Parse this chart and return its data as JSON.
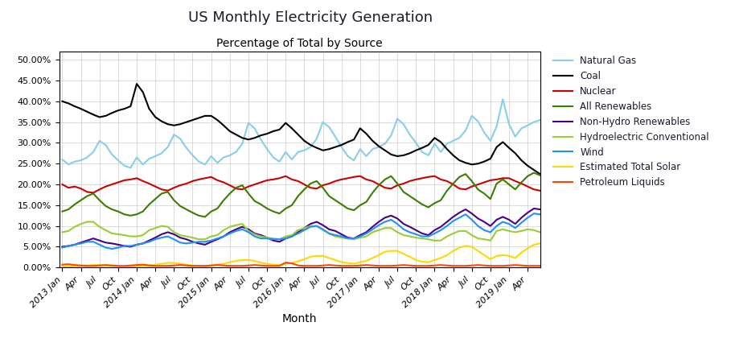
{
  "title": "US Monthly Electricity Generation",
  "subtitle": "Percentage of Total by Source",
  "xlabel": "Month",
  "series": {
    "Natural Gas": {
      "color": "#87CEEB",
      "linewidth": 1.5,
      "values": [
        0.26,
        0.248,
        0.255,
        0.258,
        0.265,
        0.278,
        0.305,
        0.295,
        0.272,
        0.258,
        0.245,
        0.24,
        0.265,
        0.248,
        0.262,
        0.268,
        0.275,
        0.29,
        0.32,
        0.31,
        0.288,
        0.27,
        0.255,
        0.248,
        0.268,
        0.252,
        0.265,
        0.27,
        0.278,
        0.298,
        0.348,
        0.335,
        0.308,
        0.285,
        0.265,
        0.255,
        0.278,
        0.26,
        0.278,
        0.282,
        0.29,
        0.31,
        0.35,
        0.338,
        0.315,
        0.29,
        0.268,
        0.258,
        0.285,
        0.268,
        0.285,
        0.29,
        0.298,
        0.318,
        0.358,
        0.345,
        0.32,
        0.3,
        0.278,
        0.27,
        0.298,
        0.278,
        0.298,
        0.305,
        0.312,
        0.33,
        0.365,
        0.352,
        0.325,
        0.305,
        0.34,
        0.405,
        0.345,
        0.315,
        0.335,
        0.342,
        0.35,
        0.355
      ]
    },
    "Coal": {
      "color": "#000000",
      "linewidth": 1.5,
      "values": [
        0.4,
        0.395,
        0.388,
        0.382,
        0.375,
        0.368,
        0.362,
        0.365,
        0.372,
        0.378,
        0.382,
        0.388,
        0.442,
        0.422,
        0.382,
        0.362,
        0.352,
        0.345,
        0.342,
        0.345,
        0.35,
        0.355,
        0.36,
        0.365,
        0.365,
        0.355,
        0.342,
        0.328,
        0.32,
        0.312,
        0.308,
        0.312,
        0.318,
        0.322,
        0.328,
        0.332,
        0.348,
        0.335,
        0.32,
        0.305,
        0.295,
        0.288,
        0.282,
        0.285,
        0.29,
        0.295,
        0.302,
        0.308,
        0.335,
        0.322,
        0.305,
        0.292,
        0.282,
        0.272,
        0.268,
        0.27,
        0.275,
        0.282,
        0.288,
        0.295,
        0.312,
        0.302,
        0.285,
        0.27,
        0.258,
        0.252,
        0.248,
        0.25,
        0.255,
        0.262,
        0.29,
        0.302,
        0.288,
        0.275,
        0.258,
        0.245,
        0.235,
        0.225
      ]
    },
    "Nuclear": {
      "color": "#CC0000",
      "linewidth": 1.5,
      "values": [
        0.2,
        0.192,
        0.195,
        0.19,
        0.182,
        0.18,
        0.188,
        0.195,
        0.2,
        0.205,
        0.21,
        0.212,
        0.215,
        0.208,
        0.202,
        0.195,
        0.188,
        0.185,
        0.192,
        0.198,
        0.202,
        0.208,
        0.212,
        0.215,
        0.218,
        0.21,
        0.205,
        0.198,
        0.19,
        0.188,
        0.195,
        0.2,
        0.205,
        0.21,
        0.212,
        0.215,
        0.22,
        0.212,
        0.208,
        0.2,
        0.192,
        0.19,
        0.198,
        0.202,
        0.208,
        0.212,
        0.215,
        0.218,
        0.22,
        0.212,
        0.208,
        0.2,
        0.192,
        0.19,
        0.198,
        0.202,
        0.208,
        0.212,
        0.215,
        0.218,
        0.22,
        0.212,
        0.208,
        0.2,
        0.19,
        0.188,
        0.195,
        0.2,
        0.205,
        0.21,
        0.212,
        0.215,
        0.215,
        0.208,
        0.202,
        0.195,
        0.188,
        0.185
      ]
    },
    "All Renewables": {
      "color": "#3A7D00",
      "linewidth": 1.5,
      "values": [
        0.135,
        0.14,
        0.152,
        0.162,
        0.172,
        0.178,
        0.162,
        0.148,
        0.14,
        0.135,
        0.128,
        0.125,
        0.128,
        0.135,
        0.152,
        0.165,
        0.178,
        0.182,
        0.162,
        0.148,
        0.14,
        0.132,
        0.125,
        0.122,
        0.135,
        0.142,
        0.162,
        0.178,
        0.192,
        0.198,
        0.178,
        0.16,
        0.152,
        0.142,
        0.135,
        0.13,
        0.142,
        0.15,
        0.172,
        0.188,
        0.202,
        0.208,
        0.192,
        0.172,
        0.162,
        0.152,
        0.142,
        0.138,
        0.15,
        0.158,
        0.18,
        0.198,
        0.212,
        0.22,
        0.202,
        0.182,
        0.172,
        0.162,
        0.152,
        0.145,
        0.155,
        0.162,
        0.185,
        0.202,
        0.218,
        0.225,
        0.208,
        0.188,
        0.178,
        0.165,
        0.202,
        0.212,
        0.2,
        0.188,
        0.205,
        0.22,
        0.228,
        0.222
      ]
    },
    "Non-Hydro Renewables": {
      "color": "#4B0082",
      "linewidth": 1.5,
      "values": [
        0.05,
        0.052,
        0.055,
        0.06,
        0.065,
        0.07,
        0.065,
        0.06,
        0.058,
        0.055,
        0.052,
        0.05,
        0.055,
        0.058,
        0.065,
        0.072,
        0.08,
        0.085,
        0.08,
        0.072,
        0.068,
        0.062,
        0.058,
        0.055,
        0.062,
        0.068,
        0.075,
        0.085,
        0.092,
        0.098,
        0.092,
        0.082,
        0.078,
        0.072,
        0.065,
        0.062,
        0.07,
        0.075,
        0.085,
        0.095,
        0.105,
        0.11,
        0.102,
        0.092,
        0.088,
        0.08,
        0.072,
        0.07,
        0.078,
        0.085,
        0.098,
        0.11,
        0.12,
        0.125,
        0.118,
        0.105,
        0.098,
        0.09,
        0.082,
        0.078,
        0.09,
        0.098,
        0.11,
        0.122,
        0.132,
        0.14,
        0.13,
        0.118,
        0.11,
        0.1,
        0.115,
        0.122,
        0.115,
        0.105,
        0.12,
        0.132,
        0.142,
        0.14
      ]
    },
    "Hydroelectric Conventional": {
      "color": "#9ACD32",
      "linewidth": 1.5,
      "values": [
        0.085,
        0.088,
        0.098,
        0.105,
        0.11,
        0.11,
        0.098,
        0.09,
        0.082,
        0.08,
        0.078,
        0.075,
        0.075,
        0.078,
        0.09,
        0.095,
        0.1,
        0.098,
        0.085,
        0.078,
        0.075,
        0.072,
        0.068,
        0.068,
        0.075,
        0.078,
        0.09,
        0.098,
        0.102,
        0.105,
        0.088,
        0.08,
        0.075,
        0.072,
        0.07,
        0.068,
        0.075,
        0.078,
        0.09,
        0.095,
        0.1,
        0.1,
        0.09,
        0.082,
        0.075,
        0.072,
        0.07,
        0.068,
        0.072,
        0.075,
        0.085,
        0.09,
        0.095,
        0.095,
        0.085,
        0.078,
        0.075,
        0.072,
        0.07,
        0.068,
        0.065,
        0.065,
        0.075,
        0.082,
        0.088,
        0.088,
        0.078,
        0.07,
        0.068,
        0.065,
        0.088,
        0.092,
        0.088,
        0.085,
        0.088,
        0.092,
        0.09,
        0.085
      ]
    },
    "Wind": {
      "color": "#1E90FF",
      "linewidth": 1.5,
      "values": [
        0.048,
        0.052,
        0.055,
        0.058,
        0.062,
        0.062,
        0.055,
        0.048,
        0.045,
        0.048,
        0.052,
        0.052,
        0.055,
        0.058,
        0.062,
        0.068,
        0.072,
        0.075,
        0.068,
        0.06,
        0.058,
        0.06,
        0.062,
        0.062,
        0.065,
        0.07,
        0.075,
        0.082,
        0.088,
        0.092,
        0.085,
        0.075,
        0.07,
        0.07,
        0.068,
        0.068,
        0.07,
        0.075,
        0.082,
        0.09,
        0.098,
        0.1,
        0.092,
        0.082,
        0.078,
        0.075,
        0.07,
        0.07,
        0.075,
        0.082,
        0.092,
        0.102,
        0.11,
        0.115,
        0.105,
        0.092,
        0.085,
        0.08,
        0.075,
        0.075,
        0.082,
        0.09,
        0.1,
        0.112,
        0.12,
        0.128,
        0.115,
        0.1,
        0.09,
        0.085,
        0.1,
        0.11,
        0.105,
        0.095,
        0.108,
        0.12,
        0.13,
        0.128
      ]
    },
    "Estimated Total Solar": {
      "color": "#FFD700",
      "linewidth": 1.5,
      "values": [
        0.002,
        0.002,
        0.003,
        0.004,
        0.005,
        0.006,
        0.006,
        0.005,
        0.004,
        0.003,
        0.002,
        0.002,
        0.003,
        0.004,
        0.005,
        0.007,
        0.009,
        0.011,
        0.011,
        0.009,
        0.007,
        0.005,
        0.004,
        0.003,
        0.005,
        0.007,
        0.009,
        0.013,
        0.016,
        0.018,
        0.018,
        0.016,
        0.012,
        0.009,
        0.007,
        0.006,
        0.009,
        0.011,
        0.015,
        0.02,
        0.026,
        0.028,
        0.028,
        0.023,
        0.018,
        0.013,
        0.011,
        0.009,
        0.013,
        0.016,
        0.023,
        0.03,
        0.038,
        0.04,
        0.04,
        0.033,
        0.026,
        0.018,
        0.014,
        0.013,
        0.018,
        0.023,
        0.03,
        0.04,
        0.048,
        0.052,
        0.05,
        0.04,
        0.03,
        0.02,
        0.028,
        0.03,
        0.028,
        0.023,
        0.036,
        0.046,
        0.055,
        0.058
      ]
    },
    "Petroleum Liquids": {
      "color": "#FF4500",
      "linewidth": 1.5,
      "values": [
        0.007,
        0.008,
        0.006,
        0.005,
        0.004,
        0.004,
        0.005,
        0.006,
        0.005,
        0.004,
        0.004,
        0.005,
        0.006,
        0.007,
        0.005,
        0.004,
        0.004,
        0.004,
        0.005,
        0.006,
        0.005,
        0.004,
        0.004,
        0.004,
        0.005,
        0.006,
        0.005,
        0.004,
        0.004,
        0.004,
        0.005,
        0.006,
        0.005,
        0.004,
        0.004,
        0.004,
        0.012,
        0.01,
        0.005,
        0.004,
        0.004,
        0.004,
        0.005,
        0.006,
        0.005,
        0.004,
        0.004,
        0.004,
        0.005,
        0.006,
        0.005,
        0.004,
        0.004,
        0.004,
        0.005,
        0.006,
        0.005,
        0.004,
        0.004,
        0.004,
        0.005,
        0.006,
        0.005,
        0.004,
        0.004,
        0.004,
        0.005,
        0.006,
        0.005,
        0.004,
        0.004,
        0.004,
        0.005,
        0.006,
        0.005,
        0.004,
        0.004,
        0.004
      ]
    }
  },
  "x_tick_labels": [
    "2013 Jan",
    "Apr",
    "Jul",
    "Oct",
    "2014 Jan",
    "Apr",
    "Jul",
    "Oct",
    "2015 Jan",
    "Apr",
    "Jul",
    "Oct",
    "2016 Jan",
    "Apr",
    "Jul",
    "Oct",
    "2017 Jan",
    "Apr",
    "Jul",
    "Oct",
    "2018 Jan",
    "Apr",
    "Jul",
    "Oct",
    "2019 Jan",
    "Apr"
  ],
  "ylim": [
    0.0,
    0.52
  ],
  "yticks": [
    0.0,
    0.05,
    0.1,
    0.15,
    0.2,
    0.25,
    0.3,
    0.35,
    0.4,
    0.45,
    0.5
  ],
  "background_color": "#FFFFFF",
  "title_color": "#1a1a2e",
  "tick_label_color": "#000000",
  "grid_color": "#CCCCCC",
  "legend_text_color": "#1a1a2e"
}
